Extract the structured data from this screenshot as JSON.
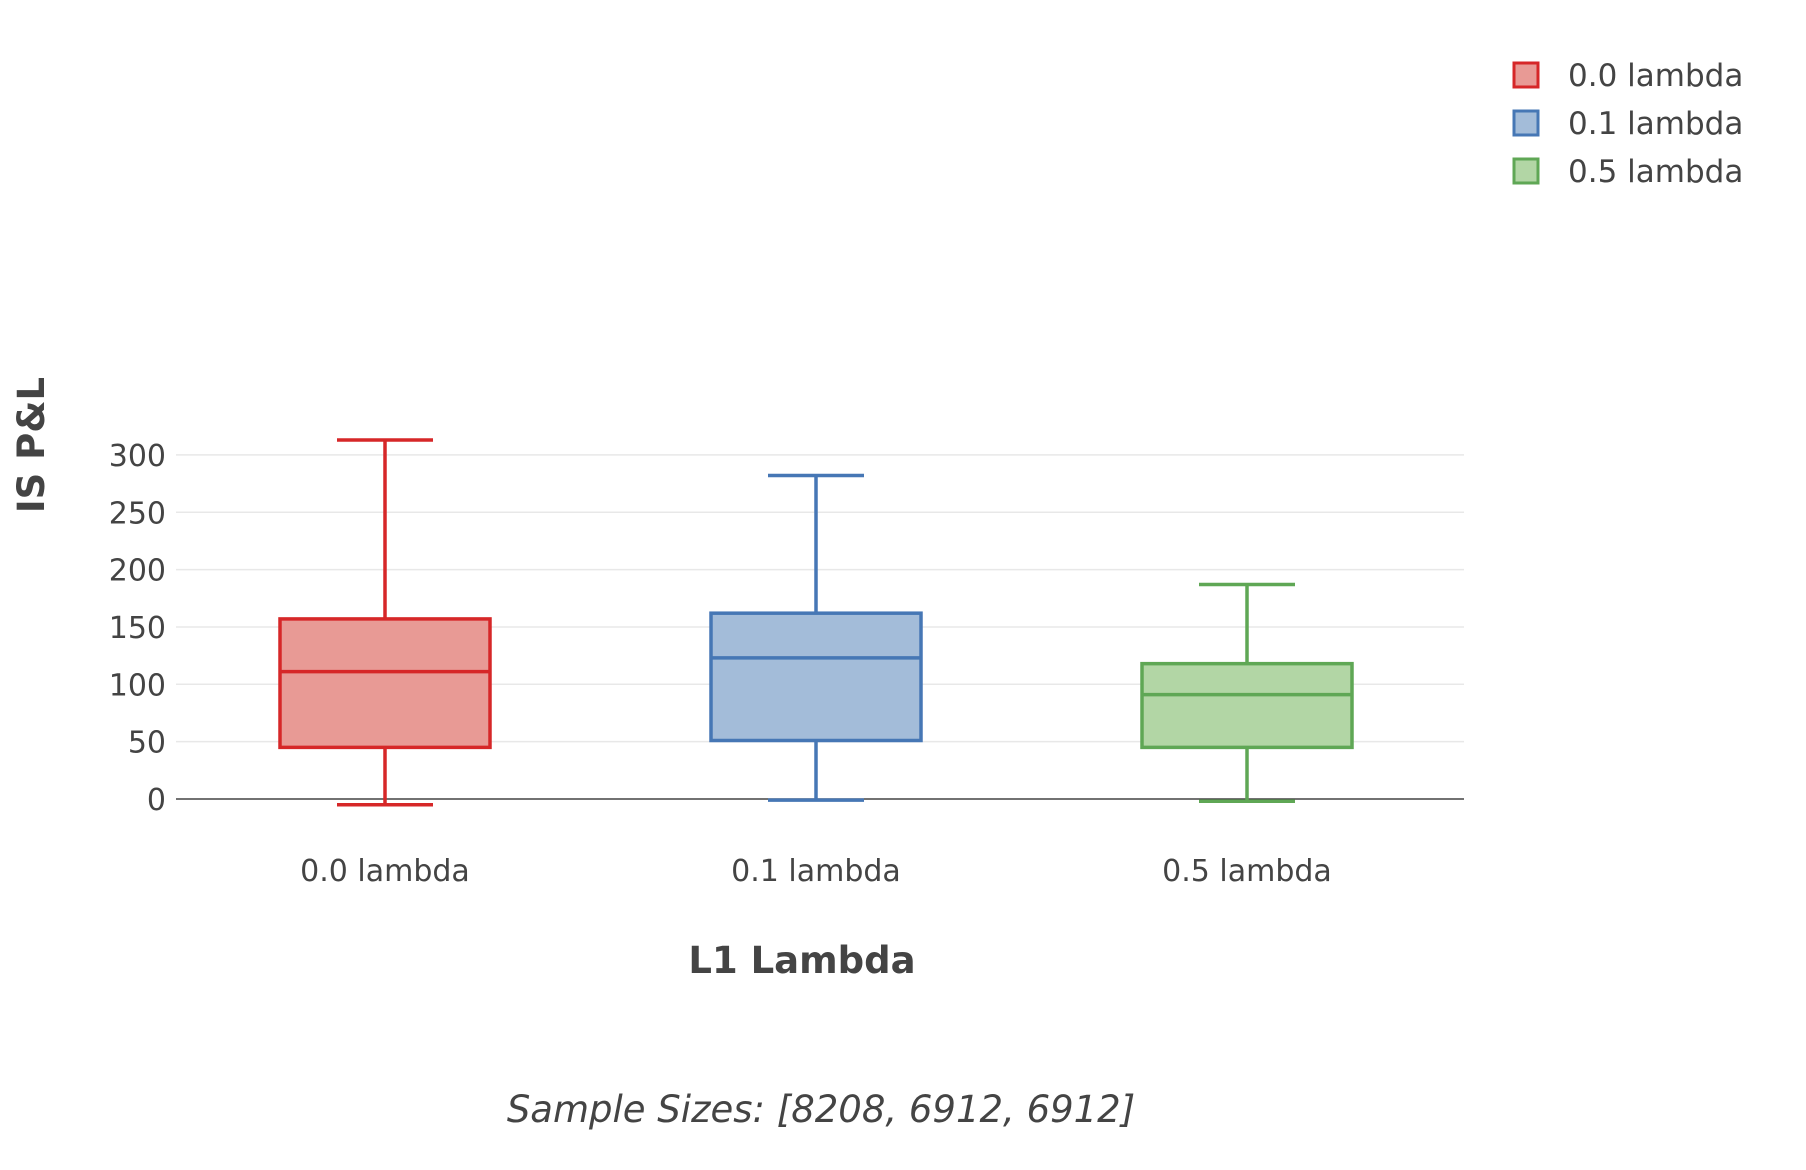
{
  "chart_data": {
    "type": "box",
    "xlabel": "L1 Lambda",
    "ylabel": "IS P&L",
    "ylim": [
      -20,
      320
    ],
    "yticks": [
      0,
      50,
      100,
      150,
      200,
      250,
      300
    ],
    "grid": true,
    "legend": "top-right",
    "annotation": "Sample Sizes: [8208, 6912, 6912]",
    "categories": [
      "0.0 lambda",
      "0.1 lambda",
      "0.5 lambda"
    ],
    "series": [
      {
        "name": "0.0 lambda",
        "min": -5,
        "q1": 45,
        "median": 111,
        "q3": 157,
        "max": 313,
        "color": "#d62728"
      },
      {
        "name": "0.1 lambda",
        "min": -1,
        "q1": 51,
        "median": 123,
        "q3": 162,
        "max": 282,
        "color": "#4677b5"
      },
      {
        "name": "0.5 lambda",
        "min": -2,
        "q1": 45,
        "median": 91,
        "q3": 118,
        "max": 187,
        "color": "#5fa755"
      }
    ],
    "fill_colors": [
      "#e89a95",
      "#a3bcd9",
      "#b2d6a5"
    ]
  }
}
